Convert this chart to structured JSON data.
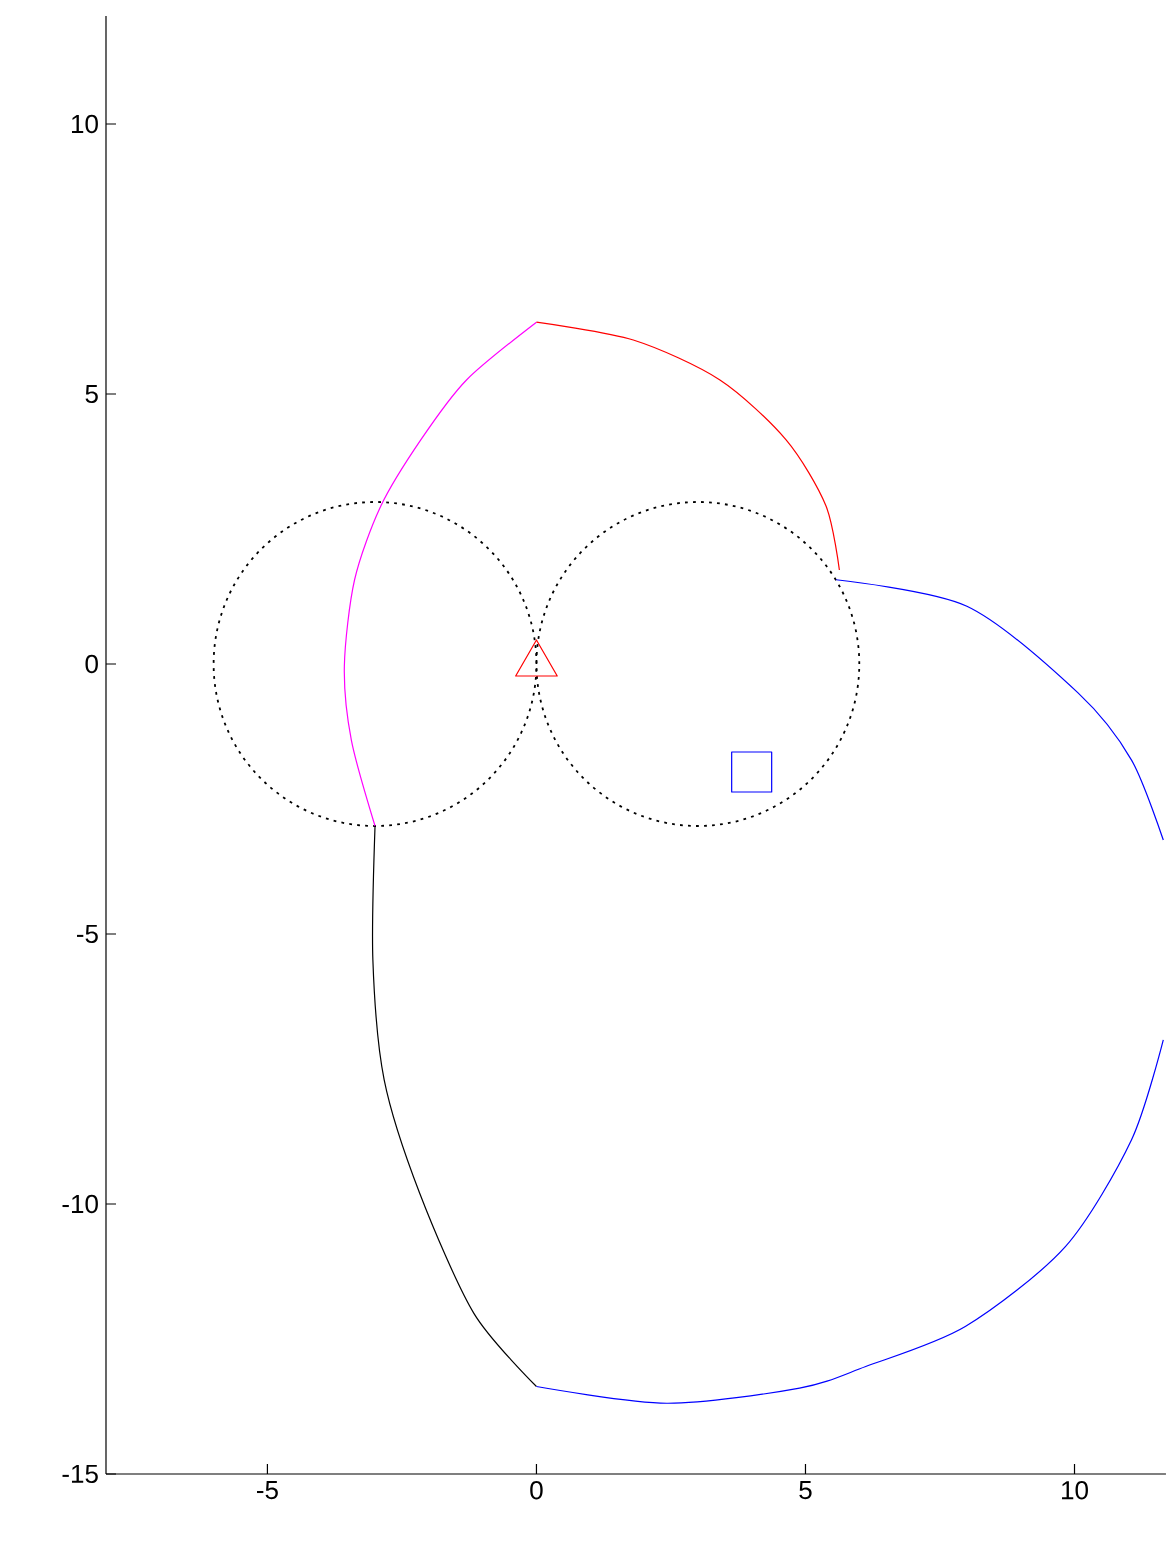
{
  "chart_data": {
    "type": "line",
    "xlim": [
      -8,
      11.7
    ],
    "ylim": [
      -15,
      12
    ],
    "xticks": [
      -5,
      0,
      5,
      10
    ],
    "yticks": [
      -15,
      -10,
      -5,
      0,
      5,
      10
    ],
    "series": [
      {
        "color": "#000000",
        "line_style": "solid",
        "x": [
          -3,
          -3.04,
          -2.83,
          -2.17,
          -1.16,
          0
        ],
        "values": [
          -3,
          -5.48,
          -7.7,
          -9.8,
          -12.03,
          -13.38
        ]
      },
      {
        "color": "#ff00ff",
        "line_style": "solid",
        "x": [
          0,
          -1.3,
          -2.15,
          -2.89,
          -3.38,
          -3.57,
          -3.44,
          -3
        ],
        "values": [
          6.33,
          5.26,
          4.15,
          2.93,
          1.56,
          -0.04,
          -1.41,
          -3
        ]
      },
      {
        "color": "#ff0000",
        "line_style": "solid",
        "x": [
          0,
          1.8,
          3.41,
          4.64,
          5.38,
          5.63
        ],
        "values": [
          6.33,
          6,
          5.26,
          4.15,
          2.93,
          1.74
        ]
      },
      {
        "color": "#0000ff",
        "line_style": "solid",
        "x": [
          5.57,
          8.0,
          10.07,
          11.06,
          11.65
        ],
        "values": [
          1.56,
          1.07,
          -0.54,
          -1.78,
          -3.26
        ]
      },
      {
        "color": "#0000ff",
        "line_style": "solid",
        "x": [
          11.65,
          11.06,
          9.83,
          7.97,
          6.12,
          4.89,
          2.42,
          0
        ],
        "values": [
          -6.96,
          -8.81,
          -10.79,
          -12.27,
          -13.01,
          -13.41,
          -13.69,
          -13.38
        ]
      },
      {
        "type": "scatter",
        "marker": "triangle",
        "color": "#ff0000",
        "x": [
          0
        ],
        "values": [
          0
        ]
      },
      {
        "type": "scatter",
        "marker": "square",
        "color": "#0000ff",
        "x": [
          4
        ],
        "values": [
          -2
        ]
      }
    ]
  }
}
